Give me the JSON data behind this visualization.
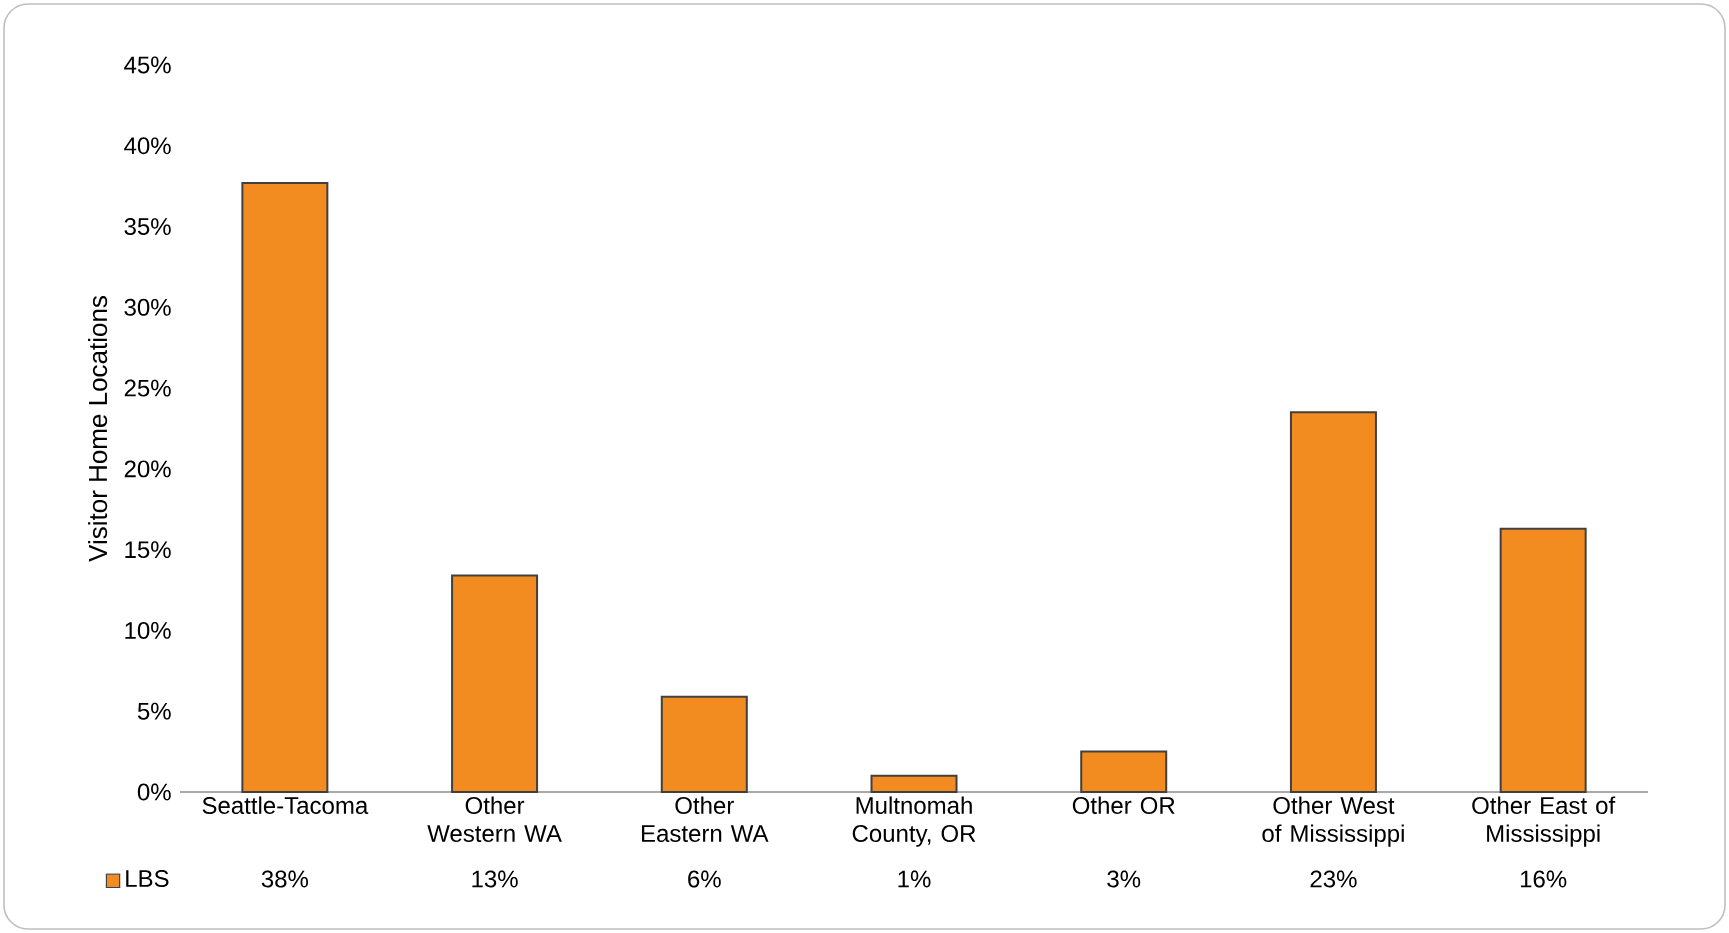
{
  "chart_data": {
    "type": "bar",
    "ylabel": "Visitor Home Locations",
    "categories": [
      "Seattle-Tacoma",
      "Other Western WA",
      "Other Eastern WA",
      "Multnomah County, OR",
      "Other OR",
      "Other West of Mississippi",
      "Other East of Mississippi"
    ],
    "series": [
      {
        "name": "LBS",
        "color": "#f28c21",
        "values": [
          37.7,
          13.4,
          5.9,
          1.0,
          2.5,
          23.5,
          16.3
        ],
        "value_labels": [
          "38%",
          "13%",
          "6%",
          "1%",
          "3%",
          "23%",
          "16%"
        ]
      }
    ],
    "ylim": [
      0,
      45
    ],
    "yticks": [
      {
        "value": 0,
        "label": "0%"
      },
      {
        "value": 5,
        "label": "5%"
      },
      {
        "value": 10,
        "label": "10%"
      },
      {
        "value": 15,
        "label": "15%"
      },
      {
        "value": 20,
        "label": "20%"
      },
      {
        "value": 25,
        "label": "25%"
      },
      {
        "value": 30,
        "label": "30%"
      },
      {
        "value": 35,
        "label": "35%"
      },
      {
        "value": 40,
        "label": "40%"
      },
      {
        "value": 45,
        "label": "45%"
      }
    ],
    "legend": "bottom left"
  }
}
